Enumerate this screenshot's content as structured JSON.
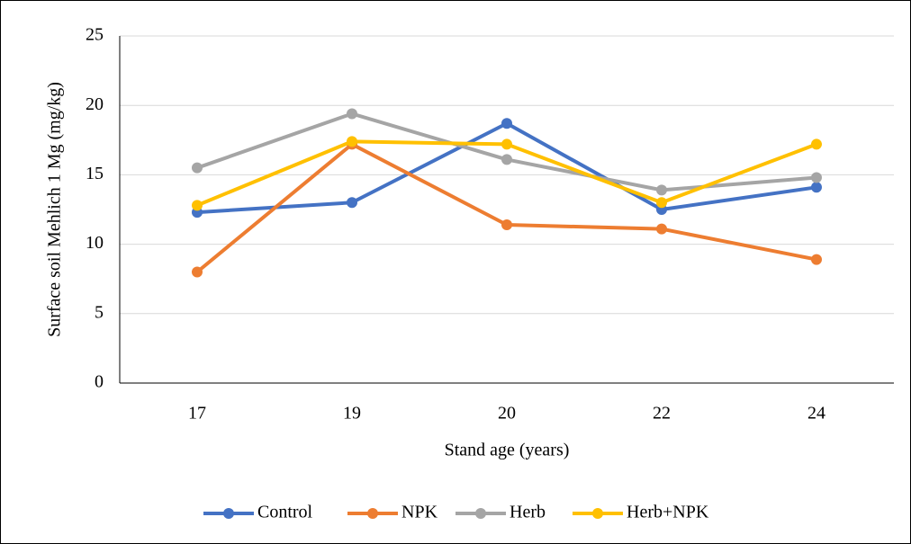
{
  "chart_data": {
    "type": "line",
    "x_label": "Stand age (years)",
    "y_label": "Surface soil Mehlich 1 Mg (mg/kg)",
    "categories": [
      "17",
      "19",
      "20",
      "22",
      "24"
    ],
    "series": [
      {
        "name": "Control",
        "color": "#4472c4",
        "values": [
          12.3,
          13.0,
          18.7,
          12.5,
          14.1
        ]
      },
      {
        "name": "NPK",
        "color": "#ed7d31",
        "values": [
          8.0,
          17.2,
          11.4,
          11.1,
          8.9
        ]
      },
      {
        "name": "Herb",
        "color": "#a5a5a5",
        "values": [
          15.5,
          19.4,
          16.1,
          13.9,
          14.8
        ]
      },
      {
        "name": "Herb+NPK",
        "color": "#ffc000",
        "values": [
          12.8,
          17.4,
          17.2,
          13.0,
          17.2
        ]
      }
    ],
    "ylim": [
      0,
      25
    ],
    "yticks": [
      0,
      5,
      10,
      15,
      20,
      25
    ],
    "grid": true,
    "legend": "bottom"
  }
}
